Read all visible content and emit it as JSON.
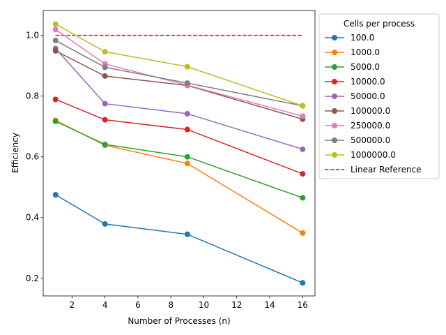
{
  "chart_data": {
    "type": "line",
    "title": "",
    "xlabel": "Number of Processes (n)",
    "ylabel": "Efficiency",
    "xlim": [
      0.25,
      16.75
    ],
    "ylim": [
      0.142,
      1.082
    ],
    "xticks": [
      2,
      4,
      6,
      8,
      10,
      12,
      14,
      16
    ],
    "yticks": [
      0.2,
      0.4,
      0.6,
      0.8,
      1.0
    ],
    "x": [
      1,
      4,
      9,
      16
    ],
    "grid": false,
    "legend": {
      "title": "Cells per process",
      "placement": "outside-right"
    },
    "series": [
      {
        "name": "100.0",
        "color": "#1f77b4",
        "values": [
          0.475,
          0.379,
          0.345,
          0.185
        ]
      },
      {
        "name": "1000.0",
        "color": "#ff7f0e",
        "values": [
          0.72,
          0.638,
          0.578,
          0.349
        ]
      },
      {
        "name": "5000.0",
        "color": "#2ca02c",
        "values": [
          0.717,
          0.641,
          0.6,
          0.465
        ]
      },
      {
        "name": "10000.0",
        "color": "#d62728",
        "values": [
          0.789,
          0.722,
          0.69,
          0.544
        ]
      },
      {
        "name": "50000.0",
        "color": "#9467bd",
        "values": [
          0.957,
          0.775,
          0.742,
          0.625
        ]
      },
      {
        "name": "100000.0",
        "color": "#8c564b",
        "values": [
          0.949,
          0.866,
          0.835,
          0.724
        ]
      },
      {
        "name": "250000.0",
        "color": "#e377c2",
        "values": [
          1.019,
          0.906,
          0.836,
          0.734
        ]
      },
      {
        "name": "500000.0",
        "color": "#7f7f7f",
        "values": [
          0.983,
          0.895,
          0.843,
          0.768
        ]
      },
      {
        "name": "1000000.0",
        "color": "#bcbd22",
        "values": [
          1.037,
          0.946,
          0.897,
          0.768
        ]
      }
    ],
    "reference": {
      "name": "Linear Reference",
      "color": "#ff0000",
      "style": "dashed",
      "x": [
        1,
        16
      ],
      "values": [
        1.0,
        1.0
      ]
    }
  }
}
